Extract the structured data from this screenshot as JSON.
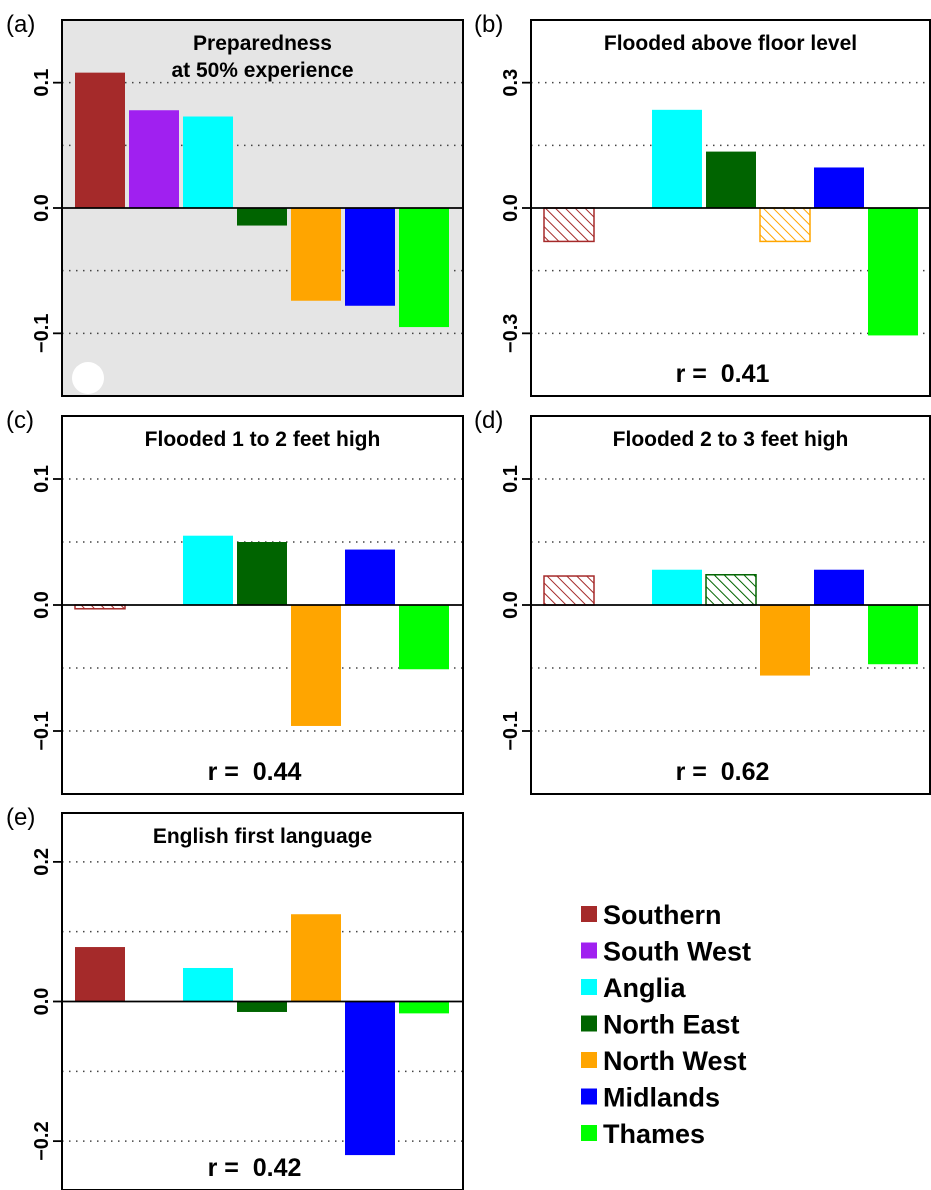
{
  "regions": [
    {
      "name": "Southern",
      "color": "#A52A2A"
    },
    {
      "name": "South West",
      "color": "#A020F0"
    },
    {
      "name": "Anglia",
      "color": "#00FFFF"
    },
    {
      "name": "North East",
      "color": "#006400"
    },
    {
      "name": "North West",
      "color": "#FFA500"
    },
    {
      "name": "Midlands",
      "color": "#0000FF"
    },
    {
      "name": "Thames",
      "color": "#00FF00"
    }
  ],
  "chart_data": [
    {
      "type": "bar",
      "label": "(a)",
      "title": [
        "Preparedness",
        "at 50% experience"
      ],
      "categories": [
        "Southern",
        "South West",
        "Anglia",
        "North East",
        "North West",
        "Midlands",
        "Thames"
      ],
      "values": [
        0.108,
        0.078,
        0.073,
        -0.014,
        -0.074,
        -0.078,
        -0.095
      ],
      "hatched": [
        false,
        false,
        false,
        false,
        false,
        false,
        false
      ],
      "ylim": [
        -0.15,
        0.15
      ],
      "yticks": [
        0.1,
        0.0,
        -0.1
      ],
      "ytick_labels": [
        "0.1",
        "0.0",
        "−0.1"
      ],
      "gridlines": [
        0.1,
        0.05,
        -0.05,
        -0.1
      ],
      "background": "#E5E5E5",
      "r_text": ""
    },
    {
      "type": "bar",
      "label": "(b)",
      "title": [
        "Flooded above floor level"
      ],
      "categories": [
        "Southern",
        "South West",
        "Anglia",
        "North East",
        "North West",
        "Midlands",
        "Thames"
      ],
      "values": [
        -0.08,
        null,
        0.235,
        0.135,
        -0.08,
        0.097,
        -0.305
      ],
      "hatched": [
        true,
        false,
        false,
        false,
        true,
        false,
        false
      ],
      "ylim": [
        -0.45,
        0.45
      ],
      "yticks": [
        0.3,
        0.0,
        -0.3
      ],
      "ytick_labels": [
        "0.3",
        "0.0",
        "−0.3"
      ],
      "gridlines": [
        0.3,
        0.15,
        -0.15,
        -0.3
      ],
      "background": "#FFFFFF",
      "r_text": "r =  0.41"
    },
    {
      "type": "bar",
      "label": "(c)",
      "title": [
        "Flooded 1 to 2 feet high"
      ],
      "categories": [
        "Southern",
        "South West",
        "Anglia",
        "North East",
        "North West",
        "Midlands",
        "Thames"
      ],
      "values": [
        -0.003,
        null,
        0.055,
        0.05,
        -0.096,
        0.044,
        -0.051
      ],
      "hatched": [
        true,
        false,
        false,
        false,
        false,
        false,
        false
      ],
      "ylim": [
        -0.15,
        0.15
      ],
      "yticks": [
        0.1,
        0.0,
        -0.1
      ],
      "ytick_labels": [
        "0.1",
        "0.0",
        "−0.1"
      ],
      "gridlines": [
        0.1,
        0.05,
        -0.05,
        -0.1
      ],
      "background": "#FFFFFF",
      "r_text": "r =  0.44"
    },
    {
      "type": "bar",
      "label": "(d)",
      "title": [
        "Flooded 2 to 3 feet high"
      ],
      "categories": [
        "Southern",
        "South West",
        "Anglia",
        "North East",
        "North West",
        "Midlands",
        "Thames"
      ],
      "values": [
        0.023,
        null,
        0.028,
        0.024,
        -0.056,
        0.028,
        -0.047
      ],
      "hatched": [
        true,
        false,
        false,
        true,
        false,
        false,
        false
      ],
      "ylim": [
        -0.15,
        0.15
      ],
      "yticks": [
        0.1,
        0.0,
        -0.1
      ],
      "ytick_labels": [
        "0.1",
        "0.0",
        "−0.1"
      ],
      "gridlines": [
        0.1,
        0.05,
        -0.05,
        -0.1
      ],
      "background": "#FFFFFF",
      "r_text": "r =  0.62"
    },
    {
      "type": "bar",
      "label": "(e)",
      "title": [
        "English first language"
      ],
      "categories": [
        "Southern",
        "South West",
        "Anglia",
        "North East",
        "North West",
        "Midlands",
        "Thames"
      ],
      "values": [
        0.078,
        null,
        0.048,
        -0.015,
        0.125,
        -0.22,
        -0.017
      ],
      "hatched": [
        false,
        false,
        false,
        false,
        false,
        false,
        false
      ],
      "ylim": [
        -0.27,
        0.27
      ],
      "yticks": [
        0.2,
        0.0,
        -0.2
      ],
      "ytick_labels": [
        "0.2",
        "0.0",
        "−0.2"
      ],
      "gridlines": [
        0.2,
        0.1,
        -0.1,
        -0.2
      ],
      "background": "#FFFFFF",
      "r_text": "r =  0.42"
    }
  ]
}
